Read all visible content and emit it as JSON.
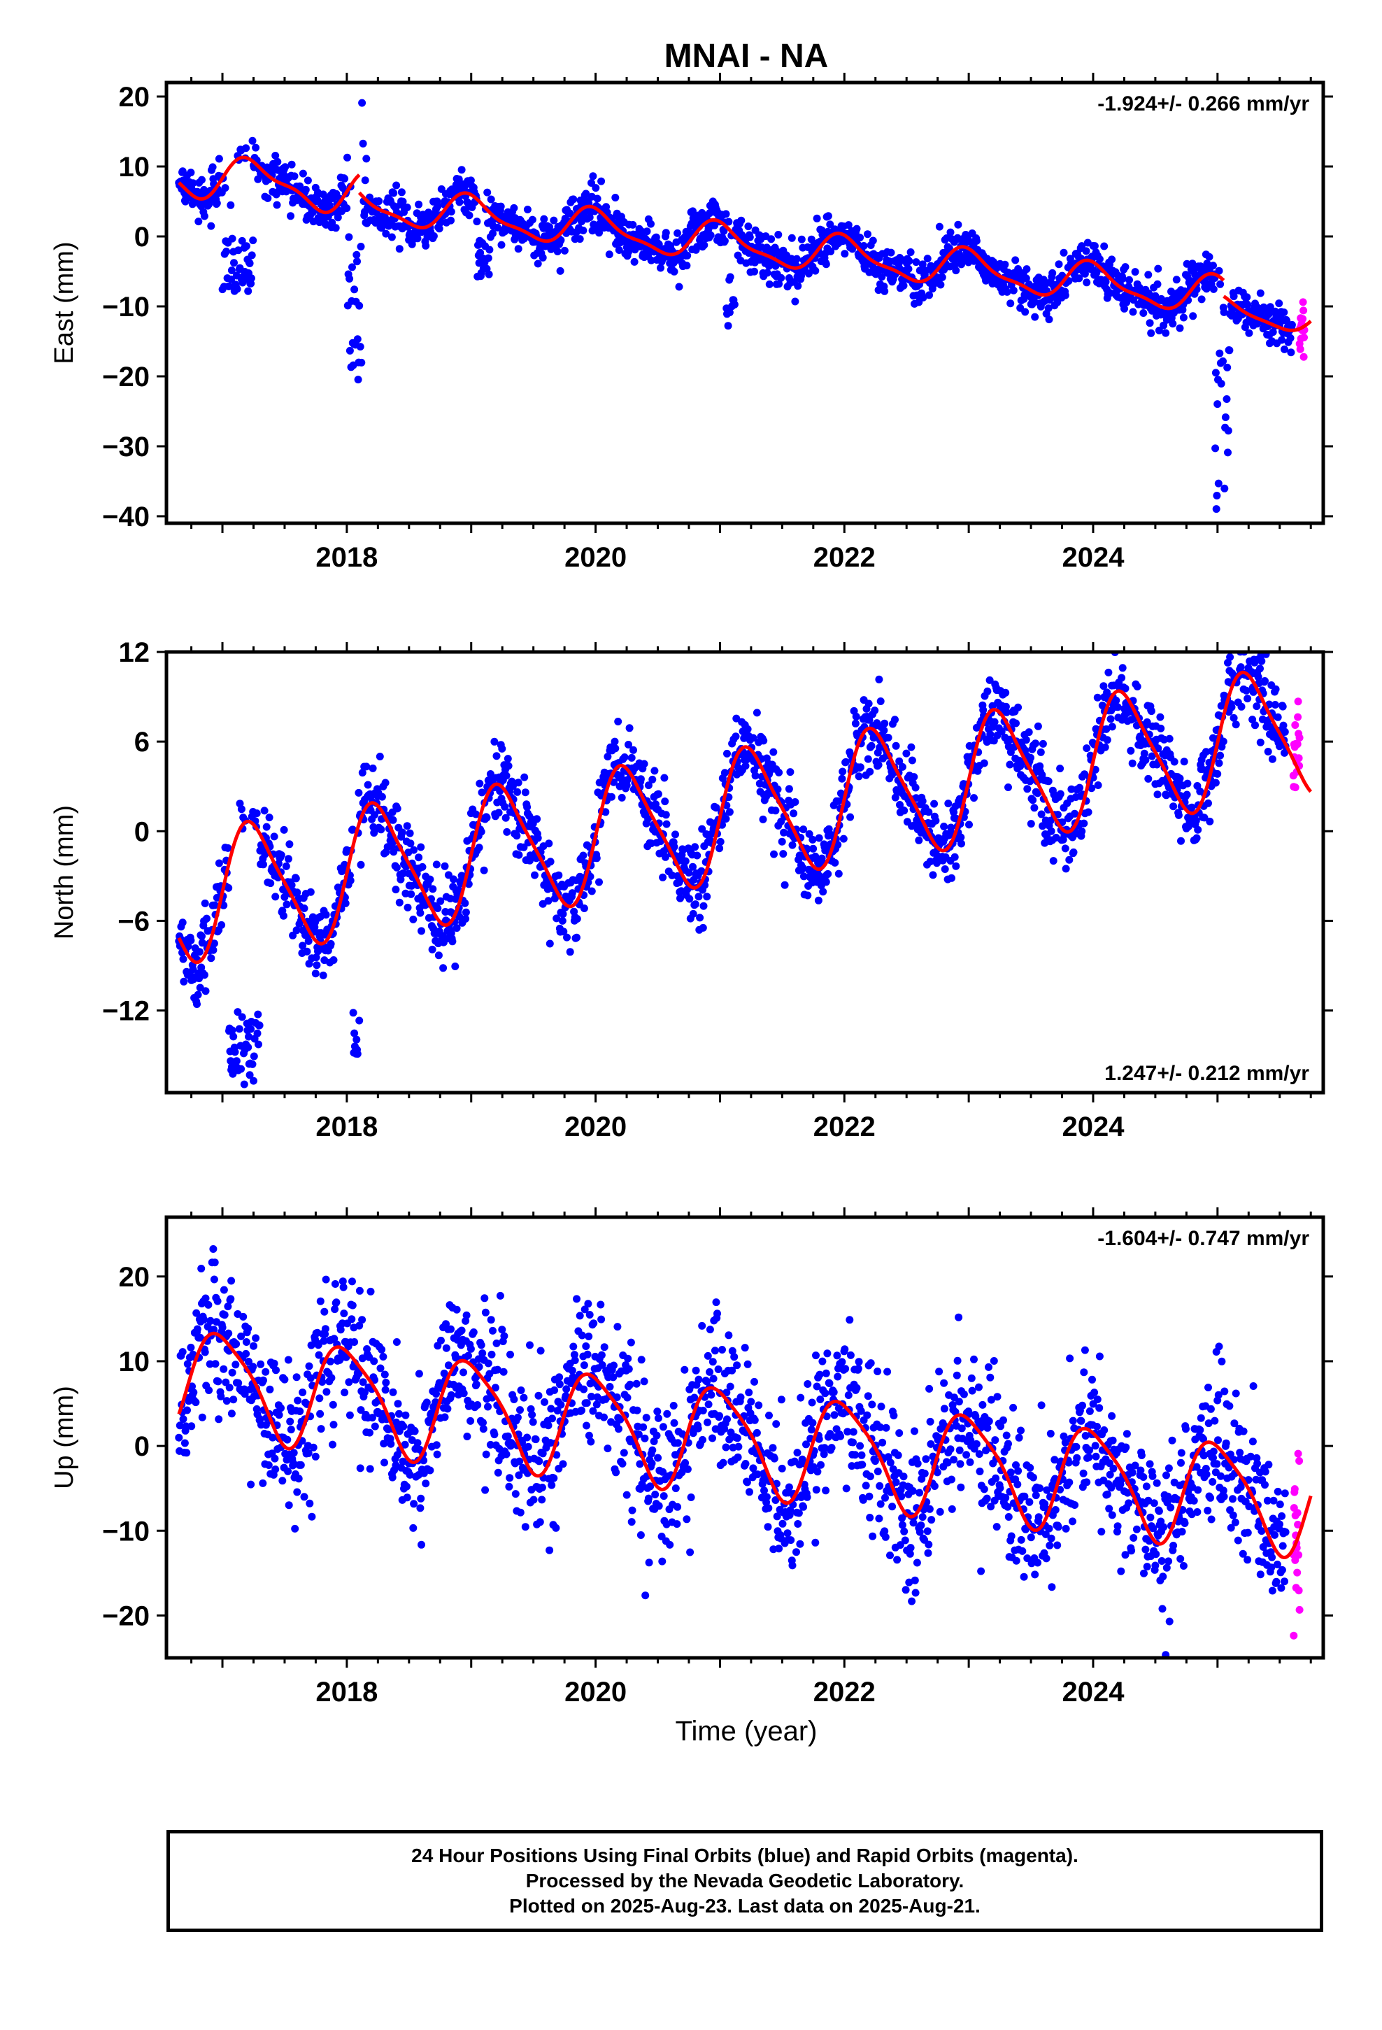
{
  "title": "MNAI - NA",
  "xlabel": "Time (year)",
  "footer": {
    "line1": "24 Hour Positions Using Final Orbits (blue) and Rapid Orbits (magenta).",
    "line2": "Processed by the Nevada Geodetic Laboratory.",
    "line3": "Plotted on 2025-Aug-23. Last data on 2025-Aug-21."
  },
  "colors": {
    "final": "#0000ff",
    "rapid": "#ff00ff",
    "fit": "#ff0000",
    "frame": "#000000"
  },
  "chart_data": [
    {
      "type": "scatter",
      "ylabel": "East (mm)",
      "rate_label": "-1.924+/- 0.266 mm/yr",
      "xlim": [
        2016.55,
        2025.85
      ],
      "ylim": [
        -41,
        22
      ],
      "xticks": [
        2018,
        2020,
        2022,
        2024
      ],
      "xtick_labels": [
        "2018",
        "2020",
        "2022",
        "2024"
      ],
      "yticks": [
        20,
        10,
        0,
        -10,
        -20,
        -30,
        -40
      ],
      "ytick_labels": [
        "20",
        "10",
        "0",
        "−10",
        "−20",
        "−30",
        "−40"
      ],
      "grid": false,
      "model": {
        "segments": [
          {
            "start": 2016.65,
            "end": 2018.1,
            "offset": 9.0,
            "rate": -1.924,
            "amp1": 2.8,
            "phase1": 0.0,
            "amp2": 1.0,
            "phase2": 1.0
          },
          {
            "start": 2018.1,
            "end": 2025.05,
            "offset": 7.5,
            "rate": -1.924,
            "amp1": 2.5,
            "phase1": 0.25,
            "amp2": 0.8,
            "phase2": 1.2
          },
          {
            "start": 2025.05,
            "end": 2025.75,
            "offset": 5.7,
            "rate": -1.924,
            "amp1": 2.0,
            "phase1": 0.25,
            "amp2": 0.5,
            "phase2": 1.2
          }
        ],
        "ref_year": 2016.65,
        "scatter_sd": 1.6,
        "data_start": 2016.65,
        "data_end": 2025.6,
        "rapid_start": 2025.6,
        "rapid_end": 2025.64,
        "transients": [
          {
            "from": 2017.0,
            "to": 2017.25,
            "min": -8,
            "max": 0
          },
          {
            "from": 2018.0,
            "to": 2018.12,
            "min": -22,
            "max": 0
          },
          {
            "from": 2018.12,
            "to": 2018.16,
            "min": 0,
            "max": 21
          },
          {
            "from": 2019.05,
            "to": 2019.15,
            "min": -6,
            "max": 0
          },
          {
            "from": 2021.05,
            "to": 2021.12,
            "min": -13,
            "max": -4
          },
          {
            "from": 2024.98,
            "to": 2025.1,
            "min": -40,
            "max": -15
          }
        ]
      }
    },
    {
      "type": "scatter",
      "ylabel": "North (mm)",
      "rate_label": "1.247+/- 0.212 mm/yr",
      "xlim": [
        2016.55,
        2025.85
      ],
      "ylim": [
        -17.5,
        12
      ],
      "xticks": [
        2018,
        2020,
        2022,
        2024
      ],
      "xtick_labels": [
        "2018",
        "2020",
        "2022",
        "2024"
      ],
      "yticks": [
        12,
        6,
        0,
        -6,
        -12
      ],
      "ytick_labels": [
        "12",
        "6",
        "0",
        "−6",
        "−12"
      ],
      "grid": false,
      "model": {
        "segments": [
          {
            "start": 2016.65,
            "end": 2025.75,
            "offset": -4.5,
            "rate": 1.247,
            "amp1": 4.2,
            "phase1": 0.0,
            "amp2": 0.8,
            "phase2": 0.5
          }
        ],
        "ref_year": 2016.65,
        "scatter_sd": 1.4,
        "data_start": 2016.65,
        "data_end": 2025.55,
        "rapid_start": 2025.55,
        "rapid_end": 2025.6,
        "transients": [
          {
            "from": 2017.05,
            "to": 2017.3,
            "min": -17,
            "max": -12
          },
          {
            "from": 2018.05,
            "to": 2018.1,
            "min": -15,
            "max": -12
          }
        ]
      }
    },
    {
      "type": "scatter",
      "ylabel": "Up (mm)",
      "rate_label": "-1.604+/- 0.747 mm/yr",
      "xlim": [
        2016.55,
        2025.85
      ],
      "ylim": [
        -25,
        27
      ],
      "xticks": [
        2018,
        2020,
        2022,
        2024
      ],
      "xtick_labels": [
        "2018",
        "2020",
        "2022",
        "2024"
      ],
      "yticks": [
        20,
        10,
        0,
        -10,
        -20
      ],
      "ytick_labels": [
        "20",
        "10",
        "0",
        "−10",
        "−20"
      ],
      "grid": false,
      "model": {
        "segments": [
          {
            "start": 2016.65,
            "end": 2025.75,
            "offset": 8.0,
            "rate": -1.604,
            "amp1": 6.0,
            "phase1": 0.25,
            "amp2": 1.2,
            "phase2": 0.8
          }
        ],
        "ref_year": 2016.65,
        "scatter_sd": 4.5,
        "data_start": 2016.65,
        "data_end": 2025.55,
        "rapid_start": 2025.55,
        "rapid_end": 2025.6,
        "transients": []
      }
    }
  ]
}
